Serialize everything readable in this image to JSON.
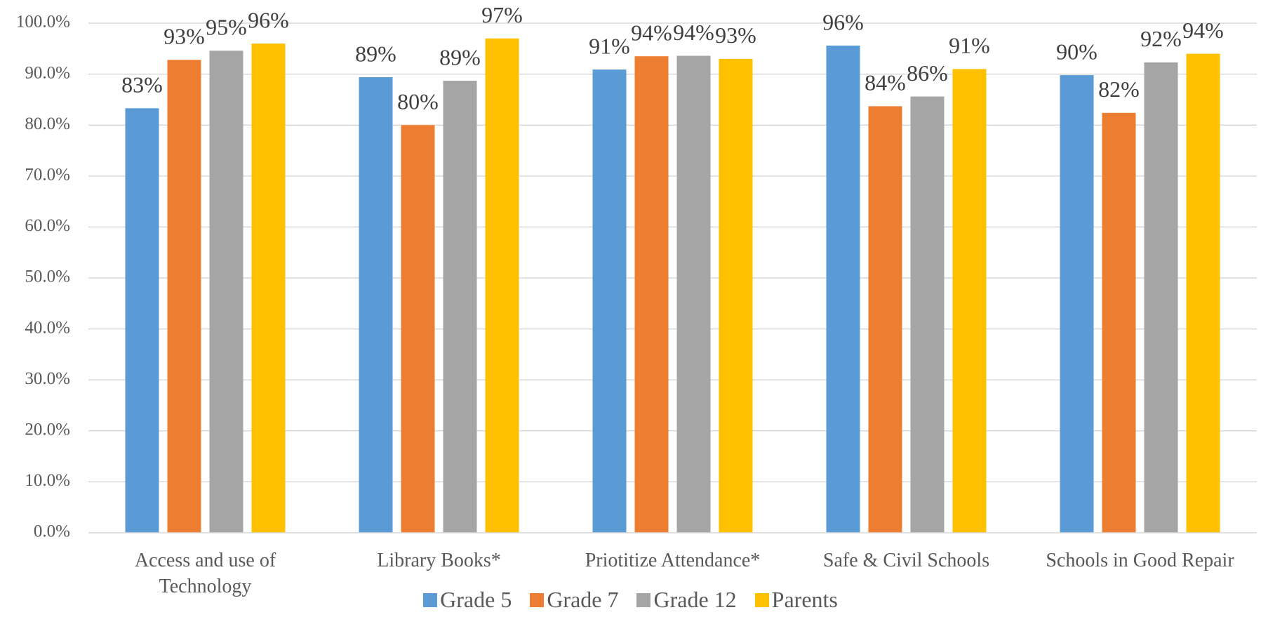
{
  "chart_data": {
    "type": "bar",
    "categories": [
      "Access and use of Technology",
      "Library Books*",
      "Priotitize Attendance*",
      "Safe & Civil Schools",
      "Schools in Good Repair"
    ],
    "series": [
      {
        "name": "Grade 5",
        "color": "#5b9bd5",
        "values": [
          83.3,
          89.4,
          90.9,
          95.6,
          89.8
        ],
        "value_labels": [
          "83%",
          "89%",
          "91%",
          "96%",
          "90%"
        ]
      },
      {
        "name": "Grade 7",
        "color": "#ed7d31",
        "values": [
          92.8,
          80.0,
          93.5,
          83.7,
          82.4
        ],
        "value_labels": [
          "93%",
          "80%",
          "94%",
          "84%",
          "82%"
        ]
      },
      {
        "name": "Grade 12",
        "color": "#a5a5a5",
        "values": [
          94.6,
          88.7,
          93.6,
          85.6,
          92.3
        ],
        "value_labels": [
          "95%",
          "89%",
          "94%",
          "86%",
          "92%"
        ]
      },
      {
        "name": "Parents",
        "color": "#ffc000",
        "values": [
          96.0,
          97.0,
          93.0,
          91.0,
          94.0
        ],
        "value_labels": [
          "96%",
          "97%",
          "93%",
          "91%",
          "94%"
        ]
      }
    ],
    "ylim": [
      0,
      100
    ],
    "yticks": [
      {
        "value": 0,
        "label": "0.0%"
      },
      {
        "value": 10,
        "label": "10.0%"
      },
      {
        "value": 20,
        "label": "20.0%"
      },
      {
        "value": 30,
        "label": "30.0%"
      },
      {
        "value": 40,
        "label": "40.0%"
      },
      {
        "value": 50,
        "label": "50.0%"
      },
      {
        "value": 60,
        "label": "60.0%"
      },
      {
        "value": 70,
        "label": "70.0%"
      },
      {
        "value": 80,
        "label": "80.0%"
      },
      {
        "value": 90,
        "label": "90.0%"
      },
      {
        "value": 100,
        "label": "100.0%"
      }
    ],
    "grid": true,
    "legend": "bottom"
  }
}
